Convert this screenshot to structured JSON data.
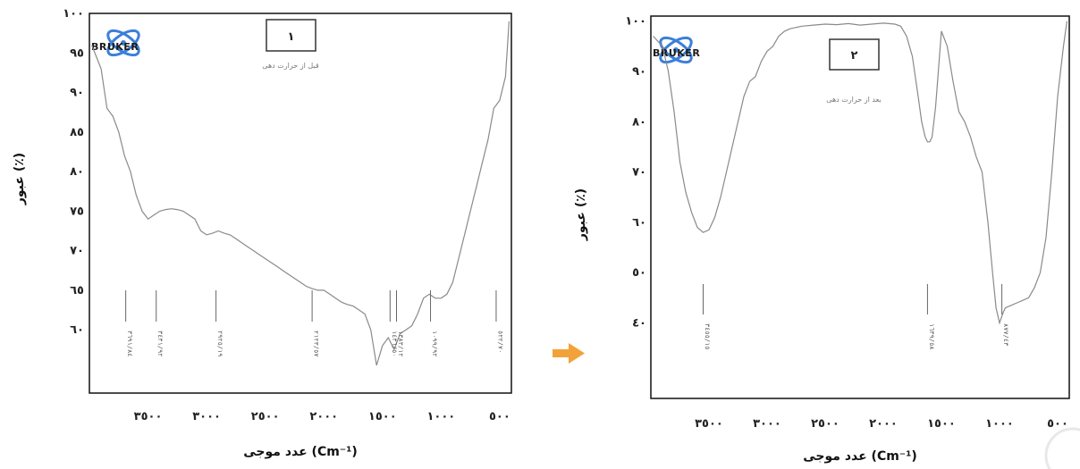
{
  "colors": {
    "curve": "#8a8a8a",
    "frame": "#111111",
    "logo_ring": "#3b7fd9",
    "arrow": "#f3a23a"
  },
  "logo": {
    "text": "BRUKER",
    "icon": "atom-icon"
  },
  "arrow": {
    "icon": "right-arrow-icon"
  },
  "chart_data": [
    {
      "type": "line",
      "box_label": "١",
      "caption": "قبل از حرارت دهی",
      "xlabel": "عدد موجی (Cm⁻¹)",
      "ylabel": "عبور (٪)",
      "xlim": [
        4000,
        400
      ],
      "ylim": [
        52,
        100
      ],
      "x_ticks": [
        3500,
        3000,
        2500,
        2000,
        1500,
        1000,
        500
      ],
      "x_tick_labels": [
        "٣٥٠٠",
        "٣٠٠٠",
        "٢٥٠٠",
        "٢٠٠٠",
        "١٥٠٠",
        "١٠٠٠",
        "٥٠٠"
      ],
      "y_ticks": [
        100,
        95,
        90,
        85,
        80,
        75,
        70,
        65,
        60
      ],
      "y_tick_labels": [
        "١٠٠",
        "٩٥",
        "٩٠",
        "٨٥",
        "٨٠",
        "٧٥",
        "٧٠",
        "٦٥",
        "٦٠"
      ],
      "grid": false,
      "series": [
        {
          "x": [
            3980,
            3900,
            3850,
            3800,
            3750,
            3700,
            3650,
            3600,
            3550,
            3500,
            3450,
            3400,
            3350,
            3300,
            3250,
            3200,
            3150,
            3100,
            3050,
            3000,
            2950,
            2900,
            2850,
            2800,
            2750,
            2700,
            2650,
            2600,
            2550,
            2500,
            2450,
            2400,
            2350,
            2300,
            2250,
            2200,
            2150,
            2100,
            2050,
            2000,
            1950,
            1900,
            1850,
            1800,
            1750,
            1700,
            1650,
            1600,
            1550,
            1500,
            1450,
            1400,
            1350,
            1300,
            1250,
            1200,
            1150,
            1100,
            1050,
            1000,
            950,
            900,
            850,
            800,
            750,
            700,
            650,
            600,
            550,
            500,
            450,
            420
          ],
          "y": [
            96,
            93,
            88,
            87,
            85,
            82,
            80,
            77,
            75,
            74,
            74.5,
            75,
            75.2,
            75.3,
            75.2,
            75,
            74.5,
            74,
            72.5,
            72,
            72.2,
            72.5,
            72.2,
            72,
            71.5,
            71,
            70.5,
            70,
            69.5,
            69,
            68.5,
            68,
            67.5,
            67,
            66.5,
            66,
            65.5,
            65.2,
            65,
            65,
            64.5,
            64,
            63.5,
            63.2,
            63,
            62.5,
            62,
            60,
            55.5,
            58,
            59,
            57.5,
            59.5,
            60,
            60.5,
            62,
            64,
            64.5,
            64,
            64,
            64.5,
            66,
            69,
            72,
            75,
            78,
            81,
            84,
            88,
            89,
            92,
            99
          ]
        }
      ],
      "peaks": [
        {
          "x": 3690,
          "label": "٣٦٩١/٨٤"
        },
        {
          "x": 3430,
          "label": "٣٤٣١/٩٢"
        },
        {
          "x": 2920,
          "label": "٢٩٢٥/١٩"
        },
        {
          "x": 2100,
          "label": "٢١٢٣/٥٧"
        },
        {
          "x": 1435,
          "label": "١٤٣٦/٥٠"
        },
        {
          "x": 1380,
          "label": "١٣٨٣/١٢"
        },
        {
          "x": 1090,
          "label": "١٠٩٩/٩٢"
        },
        {
          "x": 530,
          "label": "٥٢٢/٧٠"
        }
      ]
    },
    {
      "type": "line",
      "box_label": "٢",
      "caption": "بعد از حرارت دهی",
      "xlabel": "عدد موجی (Cm⁻¹)",
      "ylabel": "عبور (٪)",
      "xlim": [
        4000,
        400
      ],
      "ylim": [
        25,
        101
      ],
      "x_ticks": [
        3500,
        3000,
        2500,
        2000,
        1500,
        1000,
        500
      ],
      "x_tick_labels": [
        "٣٥٠٠",
        "٣٠٠٠",
        "٢٥٠٠",
        "٢٠٠٠",
        "١٥٠٠",
        "١٠٠٠",
        "٥٠٠"
      ],
      "y_ticks": [
        100,
        90,
        80,
        70,
        60,
        50,
        40
      ],
      "y_tick_labels": [
        "١٠٠",
        "٩٠",
        "٨٠",
        "٧٠",
        "٦٠",
        "٥٠",
        "٤٠"
      ],
      "grid": false,
      "series": [
        {
          "x": [
            3980,
            3900,
            3850,
            3800,
            3750,
            3700,
            3650,
            3600,
            3550,
            3500,
            3450,
            3400,
            3350,
            3300,
            3250,
            3200,
            3150,
            3100,
            3050,
            3000,
            2950,
            2900,
            2850,
            2800,
            2700,
            2600,
            2500,
            2400,
            2300,
            2200,
            2100,
            2000,
            1900,
            1850,
            1800,
            1750,
            1700,
            1670,
            1640,
            1620,
            1600,
            1580,
            1550,
            1500,
            1450,
            1400,
            1350,
            1300,
            1250,
            1200,
            1150,
            1100,
            1060,
            1030,
            1000,
            970,
            950,
            900,
            850,
            800,
            750,
            700,
            650,
            600,
            550,
            500,
            450,
            420
          ],
          "y": [
            97,
            95,
            90,
            82,
            72,
            66,
            62,
            59,
            58,
            58.5,
            61,
            65,
            70,
            75,
            80,
            85,
            88,
            89,
            92,
            94,
            95,
            97,
            98,
            98.5,
            99,
            99.2,
            99.4,
            99.3,
            99.5,
            99.2,
            99.4,
            99.6,
            99.4,
            99,
            97,
            93,
            85,
            80,
            77,
            76,
            76,
            77,
            83,
            98,
            95,
            88,
            82,
            80,
            77,
            73,
            70,
            60,
            50,
            43,
            40,
            42,
            43,
            43.5,
            44,
            44.5,
            45,
            47,
            50,
            57,
            70,
            85,
            95,
            100
          ]
        }
      ],
      "peaks": [
        {
          "x": 3550,
          "label": "٣٤٥٥/١٥"
        },
        {
          "x": 1620,
          "label": "١٦٣٩/٥٨"
        },
        {
          "x": 980,
          "label": "٨٧٧/٤٣"
        }
      ]
    }
  ]
}
